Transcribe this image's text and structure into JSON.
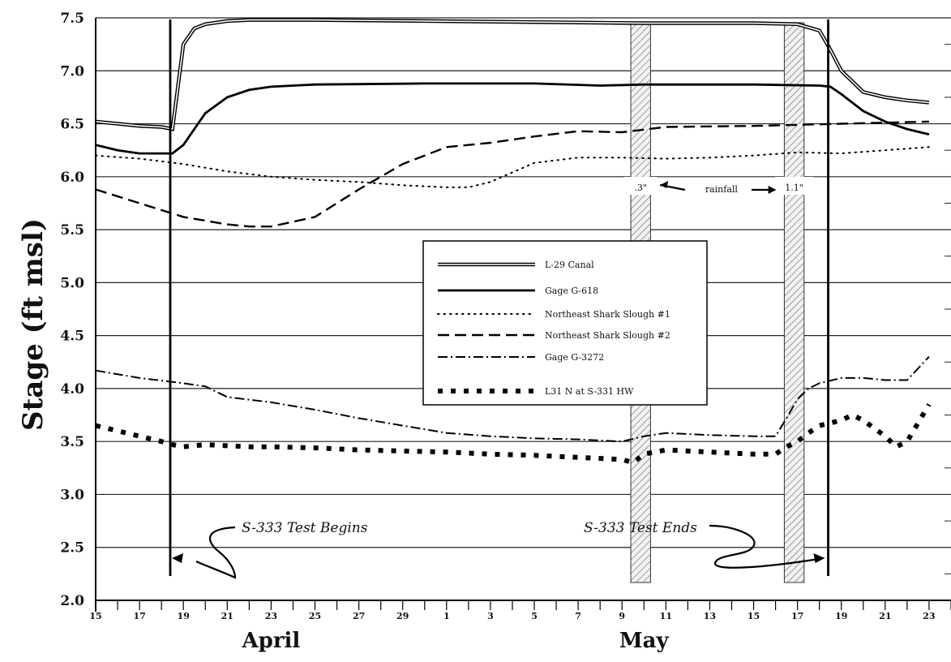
{
  "chart_data": {
    "type": "line",
    "ylabel": "Stage   (ft msl)",
    "ylim": [
      2.0,
      7.5
    ],
    "yticks": [
      "7.5",
      "7.0",
      "6.5",
      "6.0",
      "5.5",
      "5.0",
      "4.5",
      "4.0",
      "3.5",
      "3.0",
      "2.5",
      "2.0"
    ],
    "xlim": [
      15,
      54
    ],
    "x_tick_labels": [
      {
        "day": 15,
        "label": "15"
      },
      {
        "day": 17,
        "label": "17"
      },
      {
        "day": 19,
        "label": "19"
      },
      {
        "day": 21,
        "label": "21"
      },
      {
        "day": 23,
        "label": "23"
      },
      {
        "day": 25,
        "label": "25"
      },
      {
        "day": 27,
        "label": "27"
      },
      {
        "day": 29,
        "label": "29"
      },
      {
        "day": 31,
        "label": "1"
      },
      {
        "day": 33,
        "label": "3"
      },
      {
        "day": 35,
        "label": "5"
      },
      {
        "day": 37,
        "label": "7"
      },
      {
        "day": 39,
        "label": "9"
      },
      {
        "day": 41,
        "label": "11"
      },
      {
        "day": 43,
        "label": "13"
      },
      {
        "day": 45,
        "label": "15"
      },
      {
        "day": 47,
        "label": "17"
      },
      {
        "day": 49,
        "label": "19"
      },
      {
        "day": 51,
        "label": "21"
      },
      {
        "day": 53,
        "label": "23"
      }
    ],
    "months": [
      {
        "label": "April",
        "day": 23
      },
      {
        "label": "May",
        "day": 40
      }
    ],
    "series": [
      {
        "name": "L-29 Canal",
        "style": "double",
        "x": [
          15,
          16,
          17,
          18,
          18.5,
          19,
          19.5,
          20,
          21,
          22,
          25,
          30,
          35,
          40,
          45,
          47,
          48,
          48.5,
          49,
          50,
          51,
          52,
          53
        ],
        "y": [
          6.52,
          6.5,
          6.48,
          6.47,
          6.45,
          7.25,
          7.4,
          7.44,
          7.47,
          7.48,
          7.48,
          7.47,
          7.46,
          7.45,
          7.45,
          7.44,
          7.38,
          7.2,
          7.0,
          6.8,
          6.75,
          6.72,
          6.7
        ]
      },
      {
        "name": "Gage G-618",
        "style": "solid",
        "x": [
          15,
          16,
          17,
          18,
          18.5,
          19,
          19.5,
          20,
          21,
          22,
          23,
          25,
          30,
          35,
          38,
          40,
          45,
          48,
          48.5,
          49,
          50,
          51,
          52,
          53
        ],
        "y": [
          6.3,
          6.25,
          6.22,
          6.22,
          6.22,
          6.3,
          6.45,
          6.6,
          6.75,
          6.82,
          6.85,
          6.87,
          6.88,
          6.88,
          6.86,
          6.87,
          6.87,
          6.86,
          6.85,
          6.78,
          6.62,
          6.52,
          6.45,
          6.4
        ]
      },
      {
        "name": "Northeast Shark Slough #1",
        "style": "dotted",
        "x": [
          15,
          17,
          19,
          21,
          23,
          25,
          27,
          29,
          31,
          32,
          33,
          35,
          37,
          39,
          41,
          43,
          45,
          47,
          49,
          51,
          53
        ],
        "y": [
          6.2,
          6.17,
          6.12,
          6.05,
          6.0,
          5.97,
          5.95,
          5.92,
          5.9,
          5.9,
          5.95,
          6.13,
          6.18,
          6.18,
          6.17,
          6.18,
          6.2,
          6.23,
          6.22,
          6.25,
          6.28
        ]
      },
      {
        "name": "Northeast Shark Slough #2",
        "style": "dashed",
        "x": [
          15,
          17,
          19,
          21,
          22,
          23,
          25,
          27,
          29,
          31,
          33,
          35,
          37,
          39,
          41,
          45,
          49,
          53
        ],
        "y": [
          5.88,
          5.75,
          5.62,
          5.55,
          5.53,
          5.53,
          5.62,
          5.88,
          6.12,
          6.28,
          6.32,
          6.38,
          6.43,
          6.42,
          6.47,
          6.48,
          6.5,
          6.52
        ]
      },
      {
        "name": "Gage G-3272",
        "style": "dashdot",
        "x": [
          15,
          17,
          19,
          20,
          21,
          23,
          25,
          27,
          29,
          31,
          33,
          35,
          37,
          39,
          40,
          41,
          43,
          45,
          46,
          46.5,
          47,
          47.5,
          48,
          49,
          50,
          51,
          52,
          53
        ],
        "y": [
          4.17,
          4.1,
          4.05,
          4.02,
          3.92,
          3.87,
          3.8,
          3.72,
          3.65,
          3.58,
          3.55,
          3.53,
          3.52,
          3.5,
          3.55,
          3.58,
          3.56,
          3.55,
          3.55,
          3.72,
          3.9,
          4.0,
          4.05,
          4.1,
          4.1,
          4.08,
          4.08,
          4.3
        ]
      },
      {
        "name": "L-31 N at S-331 HW",
        "style": "bigdot",
        "x": [
          15,
          16,
          17,
          18,
          18.5,
          19,
          20,
          21,
          22,
          23,
          25,
          27,
          29,
          31,
          33,
          35,
          37,
          39,
          39.5,
          40,
          41,
          43,
          45,
          46,
          46.5,
          47,
          47.5,
          48,
          49,
          49.5,
          50,
          51,
          51.5,
          52,
          53
        ],
        "y": [
          3.65,
          3.6,
          3.55,
          3.5,
          3.47,
          3.45,
          3.47,
          3.46,
          3.45,
          3.45,
          3.44,
          3.42,
          3.41,
          3.4,
          3.38,
          3.37,
          3.35,
          3.33,
          3.3,
          3.38,
          3.42,
          3.4,
          3.38,
          3.38,
          3.45,
          3.5,
          3.58,
          3.65,
          3.7,
          3.75,
          3.7,
          3.55,
          3.45,
          3.5,
          3.85
        ]
      }
    ],
    "legend": {
      "placement": "center",
      "entries": [
        "L-29 Canal",
        "Gage G-618",
        "Northeast Shark Slough #1",
        "Northeast Shark Slough #2",
        "Gage G-3272",
        "L31 N at S-331 HW"
      ]
    },
    "event_lines": [
      {
        "day": 18.4,
        "label": "S-333 Test Begins"
      },
      {
        "day": 48.4,
        "label": "S-333 Test Ends"
      }
    ],
    "rainfall": [
      {
        "x0": 39.4,
        "x1": 40.3,
        "label": ".3\""
      },
      {
        "x0": 46.4,
        "x1": 47.3,
        "label": "1.1\""
      }
    ],
    "rainfall_label": "rainfall",
    "grid": true
  }
}
